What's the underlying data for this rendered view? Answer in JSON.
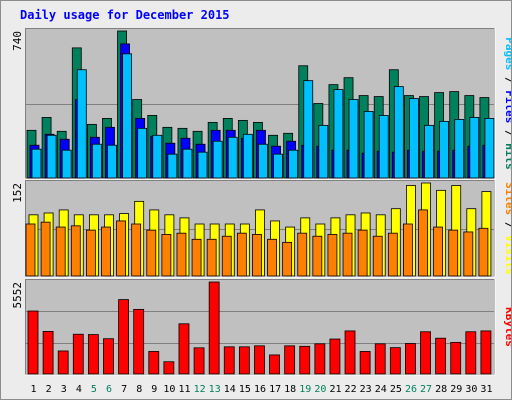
{
  "title": "Daily usage for December 2015",
  "colors": {
    "title": "#0000ff",
    "hits": "#00805c",
    "files": "#0000ff",
    "pages": "#00c0ff",
    "visits": "#ffff00",
    "sites": "#ff8000",
    "kbytes": "#ff0000",
    "weekend_label": "#00805c",
    "weekday_label": "#000000",
    "panel_bg": "#c0c0c0",
    "outer_bg": "#ececec"
  },
  "chart_data": [
    {
      "type": "bar",
      "name": "hits-files-pages",
      "ymax_label": "740",
      "ymax": 740,
      "categories": [
        "1",
        "2",
        "3",
        "4",
        "5",
        "6",
        "7",
        "8",
        "9",
        "10",
        "11",
        "12",
        "13",
        "14",
        "15",
        "16",
        "17",
        "18",
        "19",
        "20",
        "21",
        "22",
        "23",
        "24",
        "25",
        "26",
        "27",
        "28",
        "29",
        "30",
        "31"
      ],
      "right_label": [
        "Pages",
        " / ",
        "Files",
        " / ",
        "Hits"
      ],
      "series": [
        {
          "name": "Hits",
          "values": [
            240,
            305,
            235,
            655,
            270,
            300,
            740,
            395,
            315,
            255,
            250,
            235,
            280,
            300,
            290,
            280,
            215,
            225,
            565,
            375,
            470,
            505,
            415,
            410,
            545,
            415,
            410,
            430,
            435,
            415,
            405
          ]
        },
        {
          "name": "Files",
          "values": [
            165,
            220,
            195,
            395,
            205,
            255,
            675,
            300,
            210,
            175,
            200,
            170,
            240,
            240,
            200,
            240,
            160,
            185,
            165,
            160,
            140,
            140,
            125,
            135,
            130,
            140,
            135,
            135,
            140,
            160,
            165
          ]
        },
        {
          "name": "Pages",
          "values": [
            145,
            215,
            140,
            545,
            170,
            165,
            625,
            250,
            215,
            120,
            145,
            130,
            185,
            205,
            220,
            170,
            120,
            140,
            490,
            265,
            445,
            395,
            335,
            315,
            460,
            400,
            265,
            285,
            295,
            305,
            300
          ]
        }
      ]
    },
    {
      "type": "bar",
      "name": "visits-sites",
      "ymax_label": "152",
      "ymax": 152,
      "categories": [
        "1",
        "2",
        "3",
        "4",
        "5",
        "6",
        "7",
        "8",
        "9",
        "10",
        "11",
        "12",
        "13",
        "14",
        "15",
        "16",
        "17",
        "18",
        "19",
        "20",
        "21",
        "22",
        "23",
        "24",
        "25",
        "26",
        "27",
        "28",
        "29",
        "30",
        "31"
      ],
      "right_label": [
        "Sites",
        " / ",
        "Visits"
      ],
      "series": [
        {
          "name": "Visits",
          "values": [
            100,
            103,
            108,
            100,
            100,
            100,
            102,
            122,
            108,
            100,
            95,
            85,
            85,
            85,
            85,
            108,
            90,
            80,
            95,
            85,
            95,
            100,
            103,
            100,
            110,
            148,
            152,
            140,
            148,
            110,
            138
          ]
        },
        {
          "name": "Sites",
          "values": [
            85,
            88,
            80,
            82,
            75,
            80,
            90,
            85,
            75,
            68,
            70,
            60,
            60,
            65,
            70,
            68,
            60,
            55,
            70,
            65,
            68,
            70,
            75,
            65,
            70,
            85,
            108,
            80,
            75,
            72,
            78
          ]
        }
      ]
    },
    {
      "type": "bar",
      "name": "kbytes",
      "ymax_label": "5552",
      "ymax": 5552,
      "categories": [
        "1",
        "2",
        "3",
        "4",
        "5",
        "6",
        "7",
        "8",
        "9",
        "10",
        "11",
        "12",
        "13",
        "14",
        "15",
        "16",
        "17",
        "18",
        "19",
        "20",
        "21",
        "22",
        "23",
        "24",
        "25",
        "26",
        "27",
        "28",
        "29",
        "30",
        "31"
      ],
      "right_label": [
        "KBytes"
      ],
      "series": [
        {
          "name": "KBytes",
          "values": [
            3800,
            2570,
            1390,
            2400,
            2380,
            2130,
            4490,
            3900,
            1360,
            740,
            3030,
            1580,
            5552,
            1640,
            1640,
            1700,
            1150,
            1700,
            1670,
            1820,
            2110,
            2600,
            1360,
            1820,
            1590,
            1840,
            2550,
            2160,
            1910,
            2550,
            2600
          ]
        }
      ]
    }
  ],
  "x_labels": {
    "days": [
      "1",
      "2",
      "3",
      "4",
      "5",
      "6",
      "7",
      "8",
      "9",
      "10",
      "11",
      "12",
      "13",
      "14",
      "15",
      "16",
      "17",
      "18",
      "19",
      "20",
      "21",
      "22",
      "23",
      "24",
      "25",
      "26",
      "27",
      "28",
      "29",
      "30",
      "31"
    ],
    "weekend_days": [
      "5",
      "6",
      "12",
      "13",
      "19",
      "20",
      "26",
      "27"
    ]
  }
}
